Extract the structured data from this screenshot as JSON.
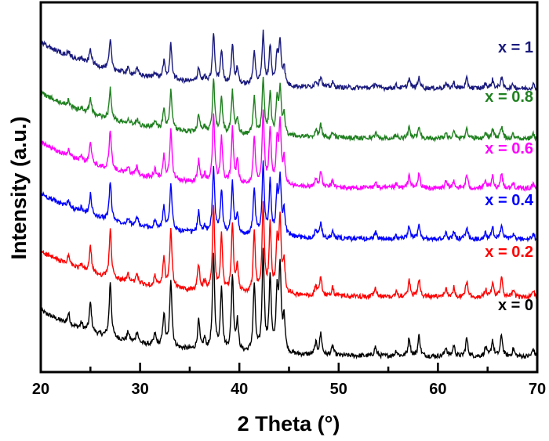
{
  "chart_data": {
    "type": "line",
    "title": "",
    "xlabel": "2 Theta (°)",
    "ylabel": "Intensity (a.u.)",
    "xlim": [
      20,
      70
    ],
    "ylim": [
      0,
      480
    ],
    "xticks": [
      20,
      30,
      40,
      50,
      60,
      70
    ],
    "xticks_minor": [
      25,
      35,
      45,
      55,
      65
    ],
    "yticks": [],
    "grid": false,
    "legend": "inline labels at right of each trace",
    "peaks": {
      "two_theta": [
        22.8,
        24.1,
        25.0,
        27.0,
        28.8,
        29.7,
        31.5,
        32.4,
        33.1,
        35.9,
        36.5,
        37.4,
        38.2,
        39.3,
        39.8,
        41.5,
        42.4,
        43.1,
        43.8,
        44.1,
        44.5,
        47.7,
        48.2,
        49.4,
        53.7,
        55.8,
        57.1,
        58.1,
        60.8,
        61.6,
        62.9,
        64.8,
        65.5,
        66.4,
        67.6,
        69.6
      ],
      "relative_intensity": [
        14,
        8,
        38,
        72,
        12,
        15,
        15,
        42,
        88,
        38,
        14,
        125,
        82,
        98,
        38,
        88,
        132,
        98,
        75,
        105,
        45,
        15,
        28,
        12,
        12,
        7,
        24,
        27,
        12,
        14,
        24,
        12,
        21,
        28,
        10,
        10
      ]
    },
    "background": {
      "amplitude": 60,
      "decay_deg": 8
    },
    "series": [
      {
        "name": "x = 0",
        "offset": 20,
        "scale": 1.0,
        "color": "#000000"
      },
      {
        "name": "x = 0.2",
        "offset": 97,
        "scale": 0.88,
        "color": "#ff0000"
      },
      {
        "name": "x = 0.4",
        "offset": 172,
        "scale": 0.7,
        "color": "#0000ff"
      },
      {
        "name": "x = 0.6",
        "offset": 238,
        "scale": 0.72,
        "color": "#ff00ff"
      },
      {
        "name": "x = 0.8",
        "offset": 303,
        "scale": 0.56,
        "color": "#1f801f"
      },
      {
        "name": "x = 1",
        "offset": 368,
        "scale": 0.52,
        "color": "#1a1a7e"
      }
    ]
  }
}
